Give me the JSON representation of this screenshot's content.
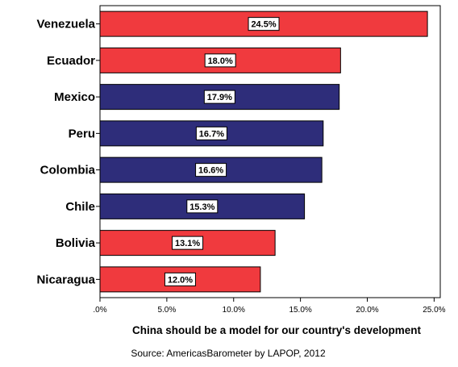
{
  "chart_data": {
    "type": "bar",
    "orientation": "horizontal",
    "categories": [
      "Venezuela",
      "Ecuador",
      "Mexico",
      "Peru",
      "Colombia",
      "Chile",
      "Bolivia",
      "Nicaragua"
    ],
    "values": [
      24.5,
      18.0,
      17.9,
      16.7,
      16.6,
      15.3,
      13.1,
      12.0
    ],
    "data_labels": [
      "24.5%",
      "18.0%",
      "17.9%",
      "16.7%",
      "16.6%",
      "15.3%",
      "13.1%",
      "12.0%"
    ],
    "bar_colors": [
      "#f03a3e",
      "#f03a3e",
      "#2e2d7a",
      "#2e2d7a",
      "#2e2d7a",
      "#2e2d7a",
      "#f03a3e",
      "#f03a3e"
    ],
    "xlabel": "China should be a model for our country's development",
    "ylabel": "",
    "xlim": [
      0,
      26.0
    ],
    "x_ticks": [
      0,
      5,
      10,
      15,
      20,
      25
    ],
    "x_tick_labels": [
      ".0%",
      "5.0%",
      "10.0%",
      "15.0%",
      "20.0%",
      "25.0%"
    ],
    "grid": false,
    "source": "Source: AmericasBarometer by LAPOP, 2012"
  }
}
